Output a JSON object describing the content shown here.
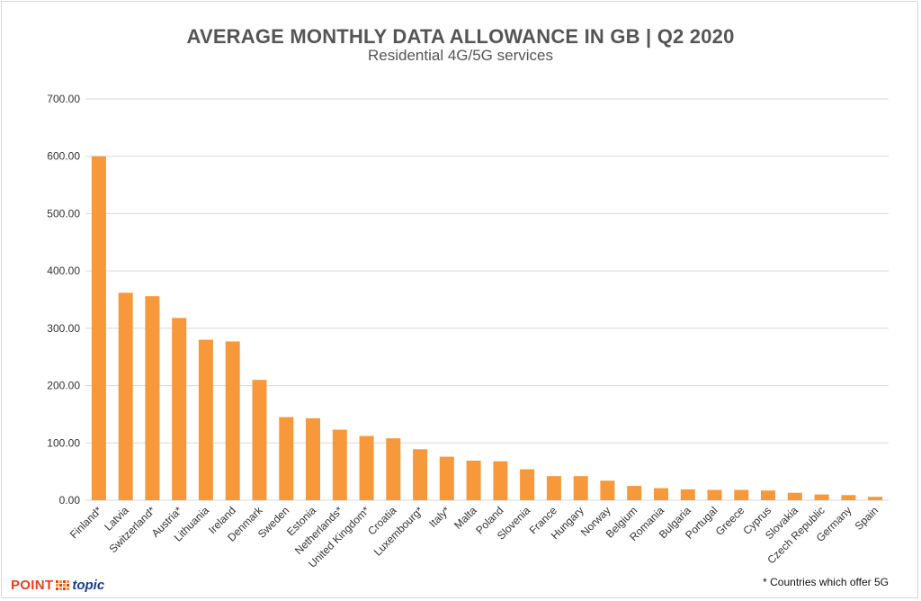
{
  "page": {
    "title": "AVERAGE MONTHLY DATA ALLOWANCE IN GB | Q2 2020",
    "subtitle": "Residential 4G/5G services",
    "footnote": "* Countries which offer 5G",
    "logo_point": "POINT",
    "logo_topic": "topic"
  },
  "colors": {
    "bar": "#f7983a",
    "grid": "#d9d9d9",
    "axis_text": "#333333",
    "logo_point": "#e8401c",
    "logo_topic": "#1b3c8c"
  },
  "chart_data": {
    "type": "bar",
    "title": "AVERAGE MONTHLY DATA ALLOWANCE IN GB | Q2 2020",
    "subtitle": "Residential 4G/5G services",
    "xlabel": "",
    "ylabel": "",
    "ylim": [
      0,
      700
    ],
    "yticks": [
      "0.00",
      "100.00",
      "200.00",
      "300.00",
      "400.00",
      "500.00",
      "600.00",
      "700.00"
    ],
    "grid": true,
    "legend": "none",
    "categories": [
      "Finland*",
      "Latvia",
      "Switzerland*",
      "Austria*",
      "Lithuania",
      "Ireland",
      "Denmark",
      "Sweden",
      "Estonia",
      "Netherlands*",
      "United Kingdom*",
      "Croatia",
      "Luxembourg*",
      "Italy*",
      "Malta",
      "Poland",
      "Slovenia",
      "France",
      "Hungary",
      "Norway",
      "Belgium",
      "Romania",
      "Bulgaria",
      "Portugal",
      "Greece",
      "Cyprus",
      "Slovakia",
      "Czech Republic",
      "Germany",
      "Spain"
    ],
    "values": [
      600,
      362,
      356,
      318,
      280,
      277,
      210,
      145,
      143,
      123,
      112,
      108,
      89,
      76,
      69,
      68,
      54,
      42,
      42,
      34,
      25,
      21,
      19,
      18,
      18,
      17,
      13,
      10,
      9,
      6
    ]
  }
}
